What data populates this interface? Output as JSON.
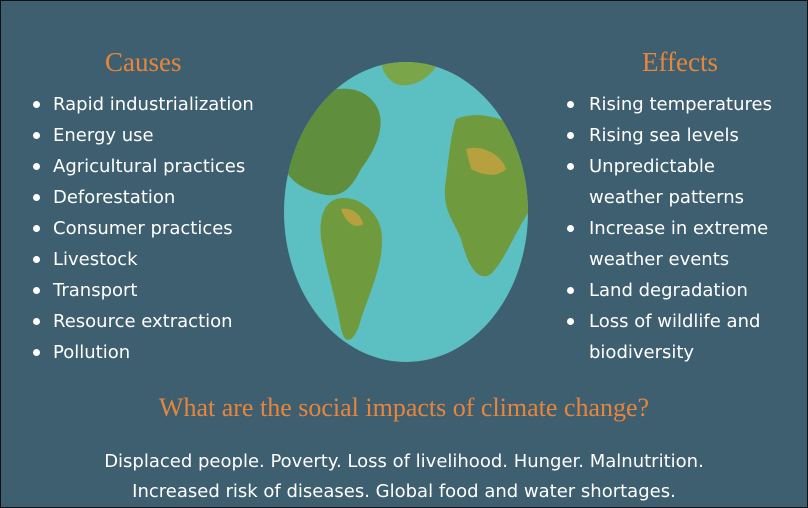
{
  "causes": {
    "title": "Causes",
    "items": [
      "Rapid industrialization",
      "Energy use",
      "Agricultural practices",
      "Deforestation",
      "Consumer practices",
      "Livestock",
      "Transport",
      "Resource extraction",
      "Pollution"
    ]
  },
  "effects": {
    "title": "Effects",
    "items": [
      [
        "Rising temperatures"
      ],
      [
        "Rising sea levels"
      ],
      [
        "Unpredictable",
        "weather patterns"
      ],
      [
        "Increase in extreme",
        "weather events"
      ],
      [
        "Land degradation"
      ],
      [
        "Loss of wildlife and",
        "biodiversity"
      ]
    ]
  },
  "social": {
    "title": "What are the social impacts of climate change?",
    "lines": [
      "Displaced people. Poverty. Loss of livelihood. Hunger. Malnutrition.",
      "Increased risk of diseases. Global food and water shortages."
    ]
  }
}
